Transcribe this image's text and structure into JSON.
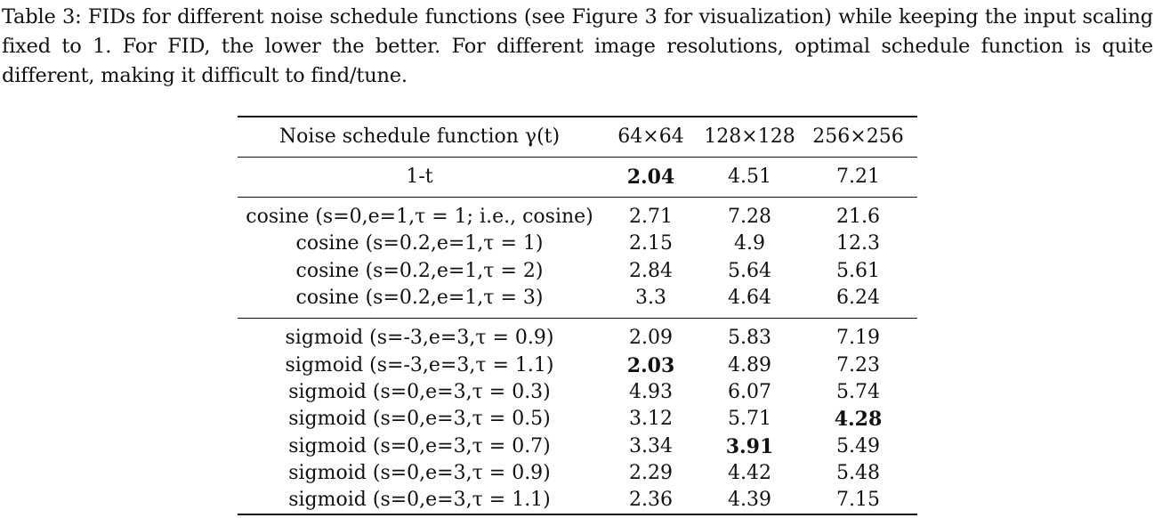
{
  "caption": "Table 3: FIDs for different noise schedule functions (see Figure 3 for visualization) while keeping the input scaling fixed to 1. For FID, the lower the better. For different image resolutions, optimal schedule function is quite different, making it difficult to find/tune.",
  "table": {
    "headers": [
      "Noise schedule function γ(t)",
      "64×64",
      "128×128",
      "256×256"
    ],
    "rows": [
      {
        "label": "1-t",
        "v64": "2.04",
        "v128": "4.51",
        "v256": "7.21",
        "bold": [
          true,
          false,
          false
        ]
      },
      {
        "label": "cosine (s=0,e=1,τ = 1; i.e., cosine)",
        "v64": "2.71",
        "v128": "7.28",
        "v256": "21.6",
        "bold": [
          false,
          false,
          false
        ]
      },
      {
        "label": "cosine (s=0.2,e=1,τ = 1)",
        "v64": "2.15",
        "v128": "4.9",
        "v256": "12.3",
        "bold": [
          false,
          false,
          false
        ]
      },
      {
        "label": "cosine (s=0.2,e=1,τ = 2)",
        "v64": "2.84",
        "v128": "5.64",
        "v256": "5.61",
        "bold": [
          false,
          false,
          false
        ]
      },
      {
        "label": "cosine (s=0.2,e=1,τ = 3)",
        "v64": "3.3",
        "v128": "4.64",
        "v256": "6.24",
        "bold": [
          false,
          false,
          false
        ]
      },
      {
        "label": "sigmoid (s=-3,e=3,τ = 0.9)",
        "v64": "2.09",
        "v128": "5.83",
        "v256": "7.19",
        "bold": [
          false,
          false,
          false
        ]
      },
      {
        "label": "sigmoid (s=-3,e=3,τ = 1.1)",
        "v64": "2.03",
        "v128": "4.89",
        "v256": "7.23",
        "bold": [
          true,
          false,
          false
        ]
      },
      {
        "label": "sigmoid (s=0,e=3,τ = 0.3)",
        "v64": "4.93",
        "v128": "6.07",
        "v256": "5.74",
        "bold": [
          false,
          false,
          false
        ]
      },
      {
        "label": "sigmoid (s=0,e=3,τ = 0.5)",
        "v64": "3.12",
        "v128": "5.71",
        "v256": "4.28",
        "bold": [
          false,
          false,
          true
        ]
      },
      {
        "label": "sigmoid (s=0,e=3,τ = 0.7)",
        "v64": "3.34",
        "v128": "3.91",
        "v256": "5.49",
        "bold": [
          false,
          true,
          false
        ]
      },
      {
        "label": "sigmoid (s=0,e=3,τ = 0.9)",
        "v64": "2.29",
        "v128": "4.42",
        "v256": "5.48",
        "bold": [
          false,
          false,
          false
        ]
      },
      {
        "label": "sigmoid (s=0,e=3,τ = 1.1)",
        "v64": "2.36",
        "v128": "4.39",
        "v256": "7.15",
        "bold": [
          false,
          false,
          false
        ]
      }
    ]
  }
}
